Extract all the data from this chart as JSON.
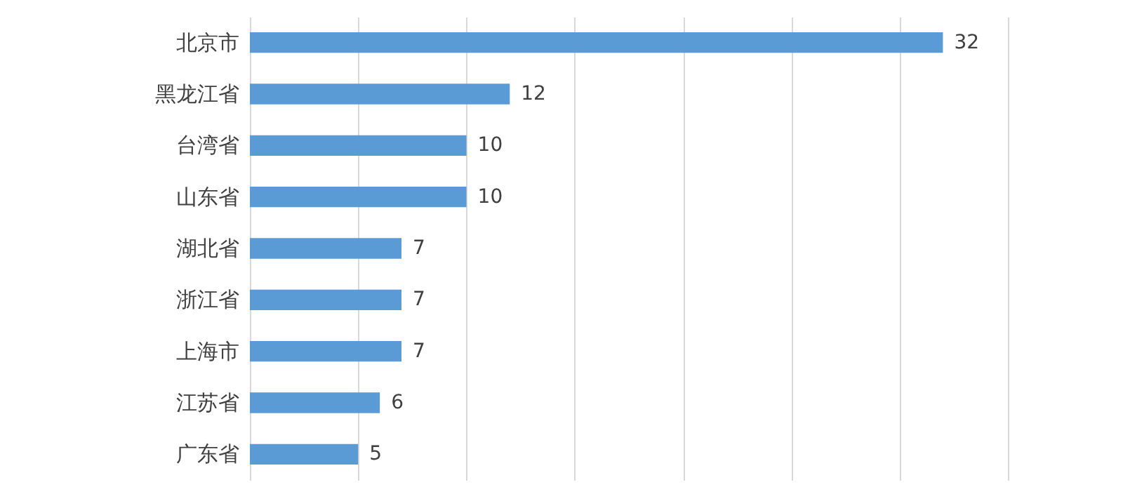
{
  "chart_data": {
    "type": "bar",
    "orientation": "horizontal",
    "categories": [
      "北京市",
      "黑龙江省",
      "台湾省",
      "山东省",
      "湖北省",
      "浙江省",
      "上海市",
      "江苏省",
      "广东省"
    ],
    "values": [
      32,
      12,
      10,
      10,
      7,
      7,
      7,
      6,
      5
    ],
    "color": "#5b9bd5",
    "xlim": [
      0,
      35
    ],
    "xticks": [
      {
        "value": 0,
        "label": null
      },
      {
        "value": 5,
        "label": null
      },
      {
        "value": 10,
        "label": null
      },
      {
        "value": 15,
        "label": null
      },
      {
        "value": 20,
        "label": null
      },
      {
        "value": 25,
        "label": null
      },
      {
        "value": 30,
        "label": null
      },
      {
        "value": 35,
        "label": null
      }
    ],
    "grid": "x",
    "tick_labels": "y",
    "data_labels": true
  }
}
